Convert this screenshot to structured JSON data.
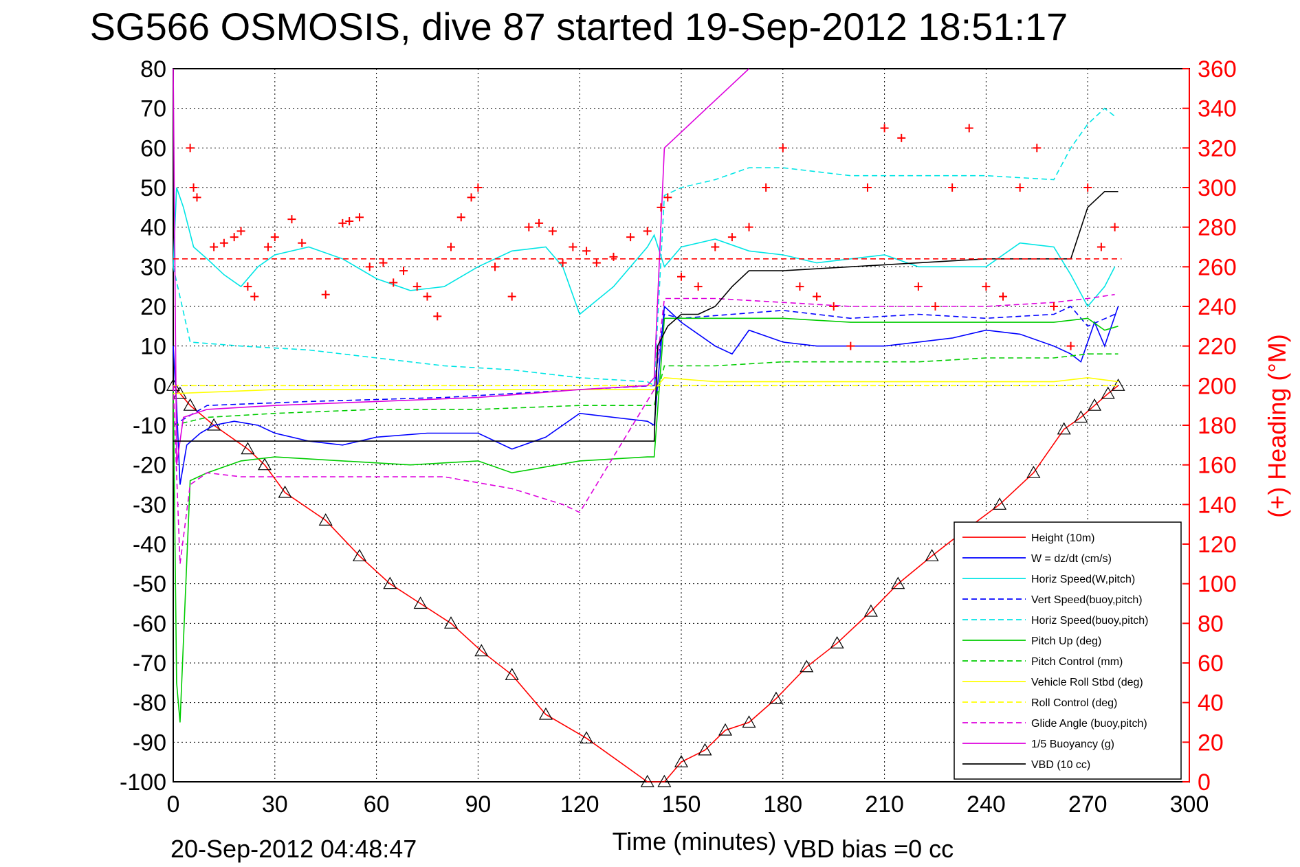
{
  "chart_data": {
    "type": "line",
    "title": "SG566 OSMOSIS, dive 87 started 19-Sep-2012 18:51:17",
    "xlabel": "Time (minutes)",
    "ylabel": "",
    "ylabel_right": "(+) Heading (°M)",
    "footer_left": "20-Sep-2012 04:48:47",
    "footer_right": "VBD bias =0 cc",
    "xlim": [
      0,
      300
    ],
    "ylim": [
      -100,
      80
    ],
    "ylim_right": [
      0,
      360
    ],
    "xticks": [
      "0",
      "30",
      "60",
      "90",
      "120",
      "150",
      "180",
      "210",
      "240",
      "270",
      "300"
    ],
    "yticks": [
      "80",
      "70",
      "60",
      "50",
      "40",
      "30",
      "20",
      "10",
      "0",
      "-10",
      "-20",
      "-30",
      "-40",
      "-50",
      "-60",
      "-70",
      "-80",
      "-90",
      "-100"
    ],
    "yticks_right": [
      "360",
      "340",
      "320",
      "300",
      "280",
      "260",
      "240",
      "220",
      "200",
      "180",
      "160",
      "140",
      "120",
      "100",
      "80",
      "60",
      "40",
      "20",
      "0"
    ],
    "grid": true,
    "legend_position": "bottom-right",
    "series": [
      {
        "name": "Height (10m)",
        "color": "#ff0000",
        "style": "solid",
        "x": [
          0,
          2,
          5,
          12,
          22,
          27,
          33,
          45,
          55,
          64,
          73,
          82,
          91,
          100,
          110,
          122,
          140,
          145,
          150,
          157,
          163,
          170,
          178,
          187,
          196,
          206,
          214,
          224,
          233,
          244,
          254,
          263,
          268,
          272,
          276,
          279
        ],
        "y": [
          0,
          -2,
          -5,
          -10,
          -16,
          -20,
          -27,
          -34,
          -43,
          -50,
          -55,
          -60,
          -67,
          -73,
          -83,
          -89,
          -100,
          -100,
          -95,
          -92,
          -87,
          -85,
          -79,
          -71,
          -65,
          -57,
          -50,
          -43,
          -37,
          -30,
          -22,
          -11,
          -8,
          -5,
          -2,
          0
        ]
      },
      {
        "name": "W = dz/dt (cm/s)",
        "color": "#0000ff",
        "style": "solid",
        "x": [
          0,
          1,
          2,
          4,
          8,
          12,
          18,
          25,
          30,
          40,
          50,
          60,
          75,
          90,
          100,
          110,
          120,
          130,
          140,
          142,
          145,
          150,
          160,
          165,
          170,
          180,
          190,
          200,
          210,
          220,
          230,
          240,
          250,
          260,
          265,
          268,
          272,
          275,
          279
        ],
        "y": [
          10,
          -5,
          -25,
          -15,
          -12,
          -10,
          -9,
          -10,
          -12,
          -14,
          -15,
          -13,
          -12,
          -12,
          -16,
          -13,
          -7,
          -8,
          -9,
          -10,
          20,
          16,
          10,
          8,
          14,
          11,
          10,
          10,
          10,
          11,
          12,
          14,
          13,
          10,
          8,
          6,
          16,
          10,
          20
        ]
      },
      {
        "name": "Horiz Speed(W,pitch)",
        "color": "#00e5e5",
        "style": "solid",
        "x": [
          0,
          1,
          3,
          6,
          10,
          15,
          20,
          25,
          30,
          40,
          50,
          60,
          70,
          80,
          90,
          100,
          110,
          115,
          120,
          130,
          140,
          142,
          145,
          150,
          160,
          170,
          180,
          190,
          200,
          210,
          220,
          230,
          240,
          250,
          260,
          265,
          270,
          275,
          278
        ],
        "y": [
          30,
          50,
          45,
          35,
          32,
          28,
          25,
          30,
          33,
          35,
          32,
          27,
          24,
          25,
          30,
          34,
          35,
          30,
          18,
          25,
          35,
          38,
          30,
          35,
          37,
          34,
          33,
          31,
          32,
          33,
          30,
          30,
          30,
          36,
          35,
          28,
          20,
          25,
          30
        ]
      },
      {
        "name": "Vert Speed(buoy,pitch)",
        "color": "#0000ff",
        "style": "dashed",
        "x": [
          0,
          10,
          40,
          80,
          120,
          142,
          145,
          150,
          165,
          180,
          200,
          220,
          240,
          260,
          265,
          270,
          278
        ],
        "y": [
          -10,
          -5,
          -4,
          -3,
          -1,
          0,
          18,
          17,
          18,
          19,
          17,
          18,
          17,
          18,
          20,
          15,
          18
        ]
      },
      {
        "name": "Horiz Speed(buoy,pitch)",
        "color": "#00e5e5",
        "style": "dashed",
        "x": [
          0,
          5,
          20,
          40,
          60,
          80,
          100,
          120,
          140,
          142,
          145,
          150,
          160,
          170,
          180,
          200,
          220,
          240,
          260,
          265,
          270,
          275,
          278
        ],
        "y": [
          30,
          11,
          10,
          9,
          7,
          5,
          4,
          2,
          1,
          0,
          48,
          50,
          52,
          55,
          55,
          53,
          53,
          53,
          52,
          60,
          66,
          70,
          68
        ]
      },
      {
        "name": "Pitch Up (deg)",
        "color": "#00cc00",
        "style": "solid",
        "x": [
          0,
          1,
          2,
          5,
          10,
          20,
          30,
          50,
          70,
          90,
          100,
          120,
          140,
          142,
          145,
          160,
          180,
          200,
          220,
          240,
          260,
          270,
          275,
          279
        ],
        "y": [
          0,
          -75,
          -85,
          -24,
          -22,
          -19,
          -18,
          -19,
          -20,
          -19,
          -22,
          -19,
          -18,
          -18,
          17,
          17,
          17,
          16,
          16,
          16,
          16,
          17,
          14,
          15
        ]
      },
      {
        "name": "Pitch Control (mm)",
        "color": "#00cc00",
        "style": "dashed",
        "x": [
          0,
          10,
          30,
          60,
          90,
          120,
          142,
          145,
          160,
          180,
          200,
          220,
          240,
          260,
          270,
          279
        ],
        "y": [
          -10,
          -8,
          -7,
          -6,
          -6,
          -5,
          -5,
          5,
          5,
          6,
          6,
          6,
          7,
          7,
          8,
          8
        ]
      },
      {
        "name": "Vehicle Roll Stbd (deg)",
        "color": "#ffff00",
        "style": "solid",
        "x": [
          0,
          30,
          60,
          90,
          120,
          142,
          145,
          160,
          180,
          200,
          220,
          240,
          260,
          270,
          279
        ],
        "y": [
          -2,
          -1,
          -1,
          -1,
          -1,
          -1,
          2,
          1,
          1,
          1,
          1,
          1,
          1,
          2,
          1
        ]
      },
      {
        "name": "Roll Control (deg)",
        "color": "#ffff00",
        "style": "dashed",
        "x": [
          0,
          30,
          60,
          90,
          120,
          142,
          145,
          160,
          180,
          200,
          220,
          240,
          260,
          270,
          279
        ],
        "y": [
          0,
          0,
          0,
          0,
          0,
          0,
          0,
          0,
          0,
          0,
          0,
          0,
          0,
          0,
          0
        ]
      },
      {
        "name": "Glide Angle (buoy,pitch)",
        "color": "#dd00dd",
        "style": "dashed",
        "x": [
          0,
          2,
          5,
          10,
          20,
          40,
          60,
          80,
          100,
          115,
          120,
          142,
          145,
          160,
          180,
          200,
          220,
          240,
          260,
          270,
          278
        ],
        "y": [
          0,
          -45,
          -25,
          -22,
          -23,
          -23,
          -23,
          -23,
          -26,
          -30,
          -32,
          -1,
          22,
          22,
          21,
          20,
          20,
          20,
          21,
          22,
          23
        ]
      },
      {
        "name": "1/5 Buoyancy (g)",
        "color": "#dd00dd",
        "style": "solid",
        "x": [
          0,
          1,
          3,
          10,
          30,
          60,
          90,
          120,
          140,
          142,
          145,
          150,
          155,
          160,
          165,
          170
        ],
        "y": [
          80,
          -20,
          -8,
          -6,
          -5,
          -4,
          -3,
          -1,
          0,
          2,
          60,
          64,
          68,
          72,
          76,
          80
        ]
      },
      {
        "name": "VBD (10 cc)",
        "color": "#000000",
        "style": "solid",
        "x": [
          0,
          2,
          4,
          140,
          142,
          143,
          146,
          150,
          155,
          160,
          165,
          170,
          180,
          200,
          220,
          240,
          255,
          265,
          270,
          275,
          279
        ],
        "y": [
          -14,
          -14,
          -14,
          -14,
          -14,
          10,
          15,
          18,
          18,
          20,
          25,
          29,
          29,
          30,
          31,
          32,
          32,
          32,
          45,
          49,
          49
        ]
      },
      {
        "name": "Heading",
        "color": "#ff0000",
        "style": "markers",
        "axis": "right",
        "x": [
          5,
          6,
          7,
          12,
          15,
          18,
          20,
          22,
          24,
          28,
          30,
          35,
          38,
          45,
          50,
          52,
          55,
          58,
          62,
          65,
          68,
          72,
          75,
          78,
          82,
          85,
          88,
          90,
          95,
          100,
          105,
          108,
          112,
          115,
          118,
          122,
          125,
          130,
          135,
          140,
          144,
          146,
          150,
          155,
          160,
          165,
          170,
          175,
          180,
          185,
          190,
          195,
          200,
          205,
          210,
          215,
          220,
          225,
          230,
          235,
          240,
          245,
          250,
          255,
          260,
          265,
          270,
          274,
          278
        ],
        "y": [
          320,
          300,
          295,
          270,
          272,
          275,
          278,
          250,
          245,
          270,
          275,
          284,
          272,
          246,
          282,
          283,
          285,
          260,
          262,
          252,
          258,
          250,
          245,
          235,
          270,
          285,
          295,
          300,
          260,
          245,
          280,
          282,
          278,
          262,
          270,
          268,
          262,
          265,
          275,
          278,
          290,
          295,
          255,
          250,
          270,
          275,
          280,
          300,
          320,
          250,
          245,
          240,
          220,
          300,
          330,
          325,
          250,
          240,
          300,
          330,
          250,
          245,
          300,
          320,
          240,
          220,
          300,
          270,
          280
        ]
      },
      {
        "name": "",
        "color": "#ff0000",
        "style": "dashed",
        "axis": "right",
        "x": [
          0,
          280
        ],
        "y": [
          264,
          264
        ]
      }
    ]
  }
}
